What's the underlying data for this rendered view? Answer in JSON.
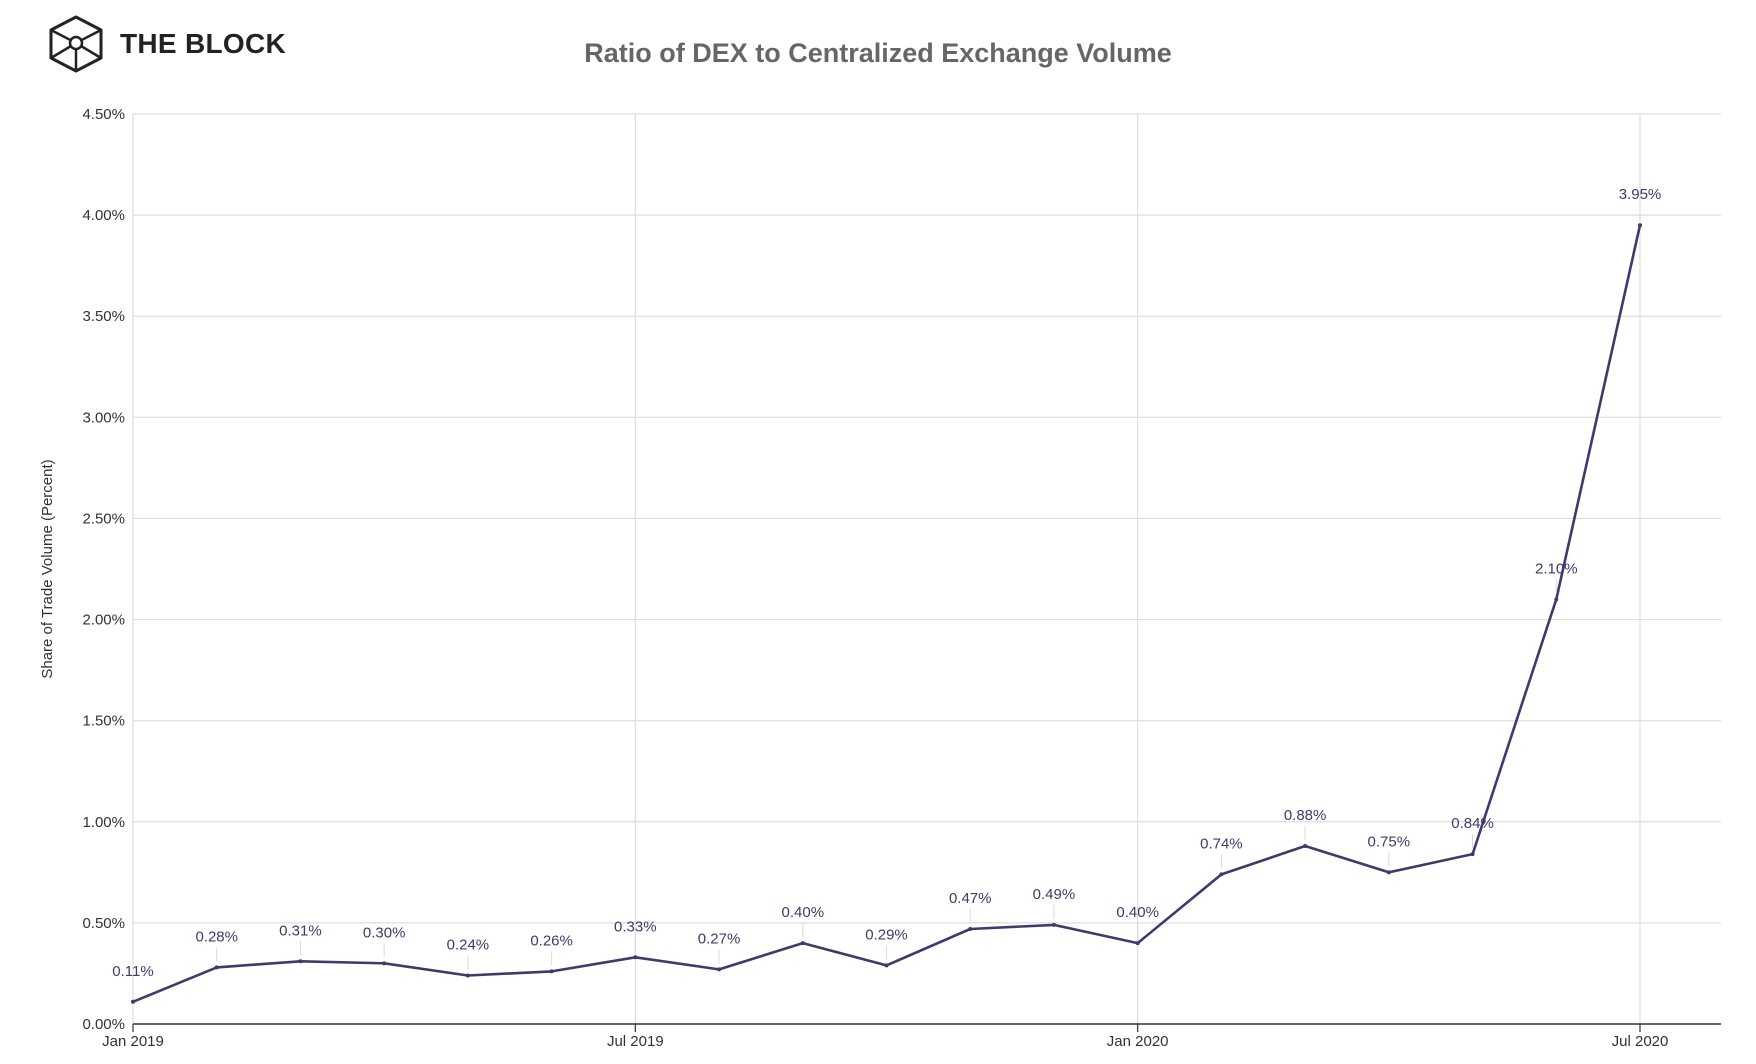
{
  "brand": {
    "name": "THE BLOCK",
    "logo_icon": "cube-logo-icon"
  },
  "chart_data": {
    "type": "line",
    "title": "Ratio of DEX to Centralized Exchange Volume",
    "xlabel": "",
    "ylabel": "Share of Trade Volume (Percent)",
    "x": [
      "2019-01",
      "2019-02",
      "2019-03",
      "2019-04",
      "2019-05",
      "2019-06",
      "2019-07",
      "2019-08",
      "2019-09",
      "2019-10",
      "2019-11",
      "2019-12",
      "2020-01",
      "2020-02",
      "2020-03",
      "2020-04",
      "2020-05",
      "2020-06",
      "2020-07"
    ],
    "series": [
      {
        "values": [
          0.11,
          0.28,
          0.31,
          0.3,
          0.24,
          0.26,
          0.33,
          0.27,
          0.4,
          0.29,
          0.47,
          0.49,
          0.4,
          0.74,
          0.88,
          0.75,
          0.84,
          2.1,
          3.95
        ],
        "data_labels": [
          "0.11%",
          "0.28%",
          "0.31%",
          "0.30%",
          "0.24%",
          "0.26%",
          "0.33%",
          "0.27%",
          "0.40%",
          "0.29%",
          "0.47%",
          "0.49%",
          "0.40%",
          "0.74%",
          "0.88%",
          "0.75%",
          "0.84%",
          "2.10%",
          "3.95%"
        ],
        "color": "#3f3a6b"
      }
    ],
    "ylim": [
      0,
      4.5
    ],
    "y_ticks": [
      0,
      0.5,
      1.0,
      1.5,
      2.0,
      2.5,
      3.0,
      3.5,
      4.0,
      4.5
    ],
    "y_tick_labels": [
      "0.00%",
      "0.50%",
      "1.00%",
      "1.50%",
      "2.00%",
      "2.50%",
      "3.00%",
      "3.50%",
      "4.00%",
      "4.50%"
    ],
    "x_ticks": [
      "2019-01",
      "2019-07",
      "2020-01",
      "2020-07"
    ],
    "x_tick_labels": [
      "Jan 2019",
      "Jul 2019",
      "Jan 2020",
      "Jul 2020"
    ],
    "grid": true,
    "legend": "none",
    "colors": {
      "line": "#3f3a6b",
      "grid": "#dddddd",
      "axis": "#333333"
    }
  }
}
